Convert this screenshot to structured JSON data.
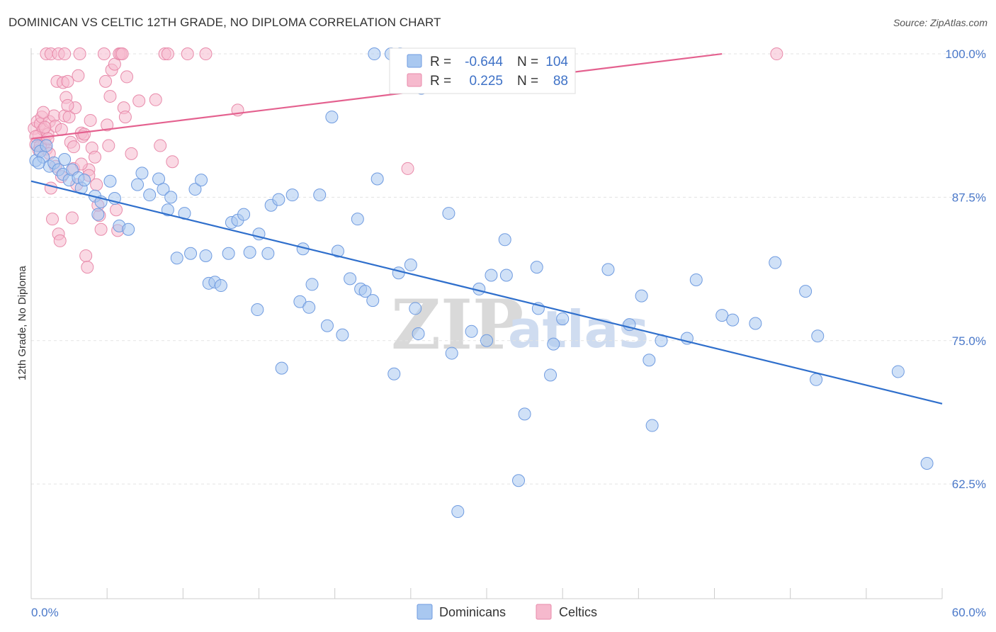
{
  "header": {
    "title": "DOMINICAN VS CELTIC 12TH GRADE, NO DIPLOMA CORRELATION CHART",
    "source": "Source: ZipAtlas.com"
  },
  "watermark": {
    "zip": "ZIP",
    "atlas": "atlas"
  },
  "legend_top": {
    "rows": [
      {
        "series": "Dominicans",
        "r_label": "R =",
        "r_value": "-0.644",
        "n_label": "N =",
        "n_value": "104"
      },
      {
        "series": "Celtics",
        "r_label": "R =",
        "r_value": "0.225",
        "n_label": "N =",
        "n_value": "88"
      }
    ]
  },
  "legend_bottom": {
    "items": [
      "Dominicans",
      "Celtics"
    ]
  },
  "colors": {
    "dominicans_fill": "#a9c8f0",
    "dominicans_stroke": "#6f9be0",
    "dominicans_line": "#2f6fcc",
    "celtics_fill": "#f6b9cd",
    "celtics_stroke": "#e88aaa",
    "celtics_line": "#e4618f",
    "tick_label": "#4a78c9",
    "grid": "#e3e3e3"
  },
  "chart_data": {
    "type": "scatter",
    "title": "DOMINICAN VS CELTIC 12TH GRADE, NO DIPLOMA CORRELATION CHART",
    "xlabel": "",
    "ylabel": "12th Grade, No Diploma",
    "xlim": [
      0,
      60
    ],
    "ylim": [
      52.5,
      101.3
    ],
    "x_tick_labels": [
      "0.0%",
      "60.0%"
    ],
    "y_ticks": [
      62.5,
      75.0,
      87.5,
      100.0
    ],
    "y_tick_labels": [
      "62.5%",
      "75.0%",
      "87.5%",
      "100.0%"
    ],
    "grid": true,
    "series": [
      {
        "name": "Dominicans",
        "r": -0.644,
        "n": 104,
        "trend": {
          "x": [
            0,
            60
          ],
          "y": [
            88.9,
            69.5
          ]
        },
        "points": [
          [
            0.3,
            90.7
          ],
          [
            0.4,
            92.0
          ],
          [
            0.6,
            91.5
          ],
          [
            0.8,
            91.0
          ],
          [
            1.0,
            92.0
          ],
          [
            1.2,
            90.2
          ],
          [
            1.5,
            90.5
          ],
          [
            1.8,
            89.9
          ],
          [
            2.1,
            89.5
          ],
          [
            2.2,
            90.8
          ],
          [
            2.5,
            89.0
          ],
          [
            2.7,
            89.9
          ],
          [
            3.1,
            89.2
          ],
          [
            3.3,
            88.3
          ],
          [
            3.5,
            89.0
          ],
          [
            4.2,
            87.6
          ],
          [
            4.4,
            86.0
          ],
          [
            4.6,
            87.1
          ],
          [
            5.2,
            88.9
          ],
          [
            5.5,
            87.4
          ],
          [
            5.8,
            85.0
          ],
          [
            6.4,
            84.7
          ],
          [
            7.0,
            88.6
          ],
          [
            7.3,
            89.6
          ],
          [
            7.8,
            87.7
          ],
          [
            8.4,
            89.1
          ],
          [
            8.7,
            88.2
          ],
          [
            9.0,
            86.4
          ],
          [
            9.2,
            87.5
          ],
          [
            9.6,
            82.2
          ],
          [
            10.1,
            86.1
          ],
          [
            10.5,
            82.6
          ],
          [
            10.8,
            88.2
          ],
          [
            11.2,
            89.0
          ],
          [
            11.5,
            82.4
          ],
          [
            11.7,
            80.0
          ],
          [
            12.1,
            80.1
          ],
          [
            12.5,
            79.8
          ],
          [
            13.0,
            82.6
          ],
          [
            13.2,
            85.3
          ],
          [
            13.6,
            85.5
          ],
          [
            14.0,
            86.0
          ],
          [
            14.4,
            82.7
          ],
          [
            14.9,
            77.7
          ],
          [
            15.0,
            84.3
          ],
          [
            15.6,
            82.6
          ],
          [
            15.8,
            86.8
          ],
          [
            16.3,
            87.3
          ],
          [
            16.5,
            72.6
          ],
          [
            17.2,
            87.7
          ],
          [
            17.7,
            78.4
          ],
          [
            17.9,
            83.0
          ],
          [
            18.3,
            77.9
          ],
          [
            18.5,
            79.9
          ],
          [
            19.0,
            87.7
          ],
          [
            19.5,
            76.3
          ],
          [
            19.8,
            94.5
          ],
          [
            20.2,
            82.8
          ],
          [
            20.5,
            75.5
          ],
          [
            21.0,
            80.4
          ],
          [
            21.5,
            85.6
          ],
          [
            21.7,
            79.5
          ],
          [
            22.0,
            79.3
          ],
          [
            22.5,
            78.5
          ],
          [
            22.6,
            100.0
          ],
          [
            22.8,
            89.1
          ],
          [
            23.7,
            100.0
          ],
          [
            23.9,
            72.1
          ],
          [
            24.2,
            80.9
          ],
          [
            24.3,
            100.0
          ],
          [
            25.0,
            81.6
          ],
          [
            25.3,
            77.8
          ],
          [
            25.5,
            75.6
          ],
          [
            25.7,
            97.0
          ],
          [
            27.5,
            86.1
          ],
          [
            27.7,
            73.9
          ],
          [
            28.1,
            60.1
          ],
          [
            29.0,
            75.8
          ],
          [
            29.5,
            79.5
          ],
          [
            30.0,
            75.0
          ],
          [
            30.3,
            80.7
          ],
          [
            31.2,
            83.8
          ],
          [
            31.3,
            80.7
          ],
          [
            32.5,
            68.6
          ],
          [
            32.1,
            62.8
          ],
          [
            33.3,
            81.4
          ],
          [
            33.4,
            77.8
          ],
          [
            34.2,
            72.0
          ],
          [
            34.4,
            74.7
          ],
          [
            35.0,
            76.9
          ],
          [
            38.0,
            81.2
          ],
          [
            39.4,
            76.4
          ],
          [
            40.2,
            78.9
          ],
          [
            40.7,
            73.3
          ],
          [
            40.9,
            67.6
          ],
          [
            41.5,
            75.0
          ],
          [
            43.2,
            75.2
          ],
          [
            43.8,
            80.3
          ],
          [
            45.5,
            77.2
          ],
          [
            46.2,
            76.8
          ],
          [
            47.7,
            76.5
          ],
          [
            49.0,
            81.8
          ],
          [
            51.0,
            79.3
          ],
          [
            51.7,
            71.6
          ],
          [
            51.8,
            75.4
          ],
          [
            57.1,
            72.3
          ],
          [
            59.0,
            64.3
          ],
          [
            0.5,
            90.5
          ]
        ]
      },
      {
        "name": "Celtics",
        "r": 0.225,
        "n": 88,
        "trend": {
          "x": [
            0,
            45.5
          ],
          "y": [
            92.6,
            100.0
          ]
        },
        "points": [
          [
            0.2,
            93.5
          ],
          [
            0.3,
            92.1
          ],
          [
            0.4,
            94.1
          ],
          [
            0.5,
            92.9
          ],
          [
            0.6,
            93.9
          ],
          [
            0.7,
            94.5
          ],
          [
            0.8,
            93.4
          ],
          [
            0.9,
            92.3
          ],
          [
            1.0,
            91.7
          ],
          [
            1.1,
            93.0
          ],
          [
            1.2,
            94.1
          ],
          [
            1.3,
            88.3
          ],
          [
            1.4,
            85.6
          ],
          [
            1.5,
            94.6
          ],
          [
            1.6,
            93.7
          ],
          [
            1.7,
            97.6
          ],
          [
            1.8,
            84.3
          ],
          [
            1.9,
            83.7
          ],
          [
            2.0,
            89.3
          ],
          [
            2.1,
            97.5
          ],
          [
            2.2,
            94.6
          ],
          [
            2.3,
            96.2
          ],
          [
            2.4,
            97.6
          ],
          [
            2.5,
            94.5
          ],
          [
            2.6,
            92.3
          ],
          [
            2.7,
            85.7
          ],
          [
            2.8,
            90.0
          ],
          [
            2.9,
            95.3
          ],
          [
            3.0,
            88.6
          ],
          [
            3.1,
            98.1
          ],
          [
            3.2,
            100.0
          ],
          [
            3.3,
            93.1
          ],
          [
            3.4,
            92.8
          ],
          [
            3.5,
            93.0
          ],
          [
            3.6,
            82.4
          ],
          [
            3.7,
            81.4
          ],
          [
            3.8,
            89.9
          ],
          [
            3.9,
            94.2
          ],
          [
            4.0,
            91.8
          ],
          [
            4.2,
            91.0
          ],
          [
            4.3,
            88.6
          ],
          [
            4.5,
            85.9
          ],
          [
            4.6,
            84.7
          ],
          [
            4.8,
            100.0
          ],
          [
            4.9,
            97.6
          ],
          [
            5.0,
            93.8
          ],
          [
            5.1,
            92.0
          ],
          [
            5.2,
            96.3
          ],
          [
            5.3,
            98.6
          ],
          [
            5.5,
            99.1
          ],
          [
            5.6,
            86.4
          ],
          [
            5.7,
            84.6
          ],
          [
            5.8,
            100.0
          ],
          [
            5.9,
            100.0
          ],
          [
            6.0,
            100.0
          ],
          [
            6.1,
            95.3
          ],
          [
            6.2,
            94.5
          ],
          [
            6.3,
            98.0
          ],
          [
            6.6,
            91.3
          ],
          [
            7.1,
            95.9
          ],
          [
            8.2,
            96.0
          ],
          [
            8.5,
            92.0
          ],
          [
            8.8,
            100.0
          ],
          [
            9.0,
            100.0
          ],
          [
            9.3,
            90.6
          ],
          [
            10.3,
            100.0
          ],
          [
            11.5,
            100.0
          ],
          [
            13.6,
            95.1
          ],
          [
            24.8,
            90.0
          ],
          [
            49.1,
            100.0
          ],
          [
            0.3,
            92.8
          ],
          [
            0.5,
            91.6
          ],
          [
            0.8,
            94.9
          ],
          [
            1.2,
            91.3
          ],
          [
            1.6,
            90.2
          ],
          [
            2.0,
            93.4
          ],
          [
            2.4,
            95.5
          ],
          [
            2.8,
            91.9
          ],
          [
            3.3,
            90.4
          ],
          [
            3.8,
            89.4
          ],
          [
            4.4,
            86.8
          ],
          [
            1.0,
            100.0
          ],
          [
            1.3,
            100.0
          ],
          [
            1.8,
            100.0
          ],
          [
            2.2,
            100.0
          ],
          [
            0.6,
            92.0
          ],
          [
            0.9,
            93.6
          ],
          [
            1.1,
            92.6
          ]
        ]
      }
    ]
  }
}
